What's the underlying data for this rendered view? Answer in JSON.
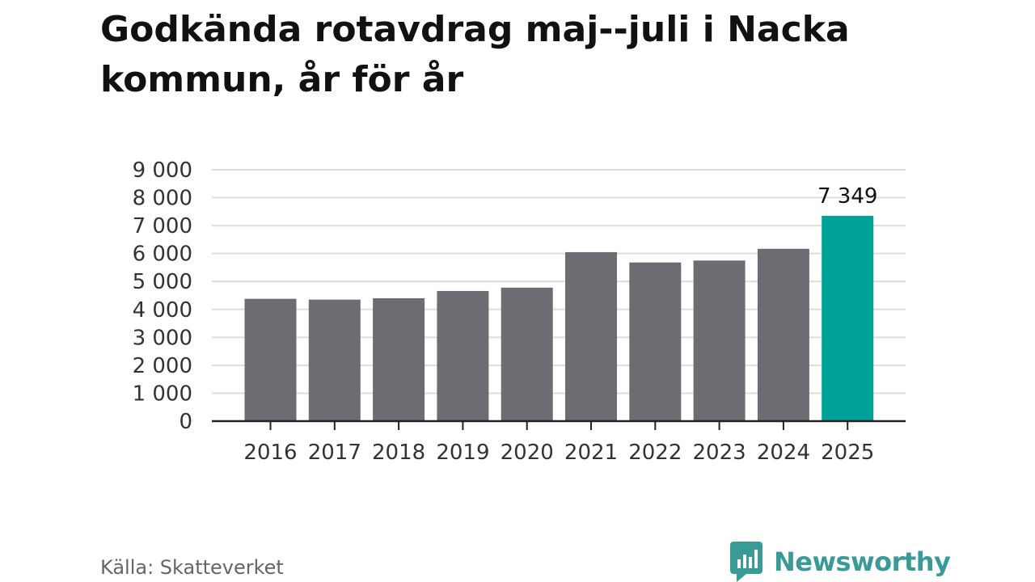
{
  "title": "Godkända rotavdrag maj--juli i Nacka kommun, år för år",
  "source": "Källa: Skatteverket",
  "brand": {
    "name": "Newsworthy",
    "icon": "newsworthy-logo-icon",
    "color": "#3a9a98"
  },
  "colors": {
    "bar": "#6d6c72",
    "highlight": "#00a199",
    "grid": "#dddddd",
    "axis": "#222222"
  },
  "chart_data": {
    "type": "bar",
    "title": "Godkända rotavdrag maj--juli i Nacka kommun, år för år",
    "xlabel": "",
    "ylabel": "",
    "categories": [
      "2016",
      "2017",
      "2018",
      "2019",
      "2020",
      "2021",
      "2022",
      "2023",
      "2024",
      "2025"
    ],
    "values": [
      4380,
      4350,
      4400,
      4660,
      4780,
      6050,
      5680,
      5750,
      6170,
      7349
    ],
    "highlight_index": 9,
    "data_labels": [
      {
        "index": 9,
        "text": "7 349"
      }
    ],
    "ylim": [
      0,
      9000
    ],
    "yticks": [
      0,
      1000,
      2000,
      3000,
      4000,
      5000,
      6000,
      7000,
      8000,
      9000
    ],
    "ytick_labels": [
      "0",
      "1 000",
      "2 000",
      "3 000",
      "4 000",
      "5 000",
      "6 000",
      "7 000",
      "8 000",
      "9 000"
    ],
    "grid": true,
    "legend": "none"
  }
}
